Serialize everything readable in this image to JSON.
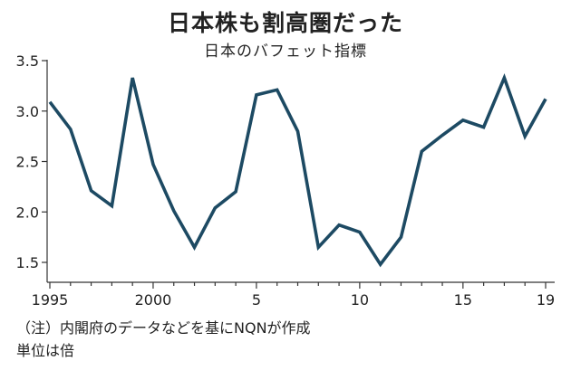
{
  "chart_data": {
    "type": "line",
    "title": "日本株も割高圏だった",
    "subtitle": "日本のバフェット指標",
    "ylim": [
      1.3,
      3.5
    ],
    "yticks": [
      1.5,
      2.0,
      2.5,
      3.0,
      3.5
    ],
    "ytick_labels": [
      "1.5",
      "2.0",
      "2.5",
      "3.0",
      "3.5"
    ],
    "xlim": [
      1995,
      2019
    ],
    "xticks": [
      1995,
      2000,
      2005,
      2010,
      2015,
      2019
    ],
    "xtick_labels": [
      "1995",
      "2000",
      "5",
      "10",
      "15",
      "19"
    ],
    "x": [
      1995,
      1996,
      1997,
      1998,
      1999,
      2000,
      2001,
      2002,
      2003,
      2004,
      2005,
      2006,
      2007,
      2008,
      2009,
      2010,
      2011,
      2012,
      2013,
      2014,
      2015,
      2016,
      2017,
      2018,
      2019
    ],
    "series": [
      {
        "values": [
          3.09,
          2.82,
          2.21,
          2.06,
          3.33,
          2.47,
          2.01,
          1.65,
          2.04,
          2.2,
          3.16,
          3.21,
          2.8,
          1.65,
          1.87,
          1.8,
          1.48,
          1.75,
          2.6,
          2.76,
          2.91,
          2.84,
          3.33,
          2.75,
          3.12
        ],
        "color": "#1d4a63"
      }
    ],
    "grid": false
  },
  "notes": [
    "（注）内閣府のデータなどを基にNQNが作成",
    "単位は倍"
  ],
  "colors": {
    "line": "#1d4a63",
    "axis": "#333333"
  }
}
